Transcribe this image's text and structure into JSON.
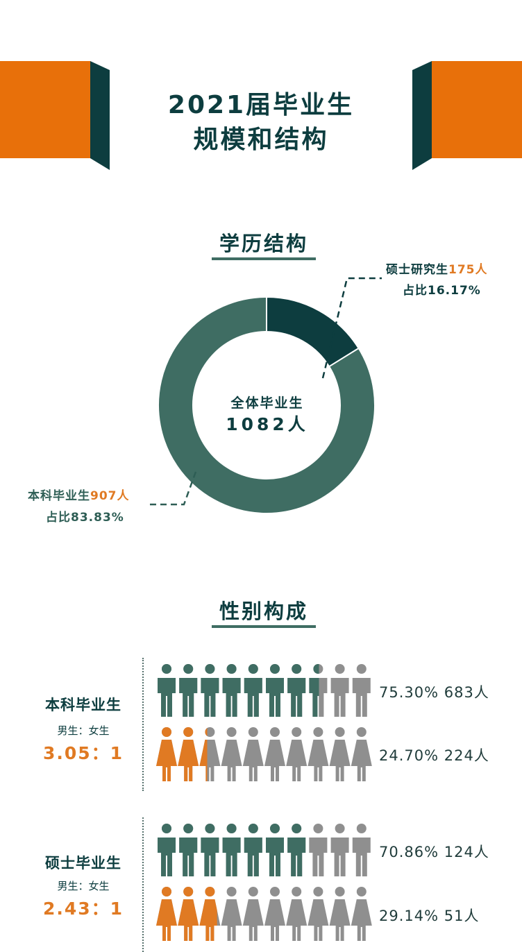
{
  "header": {
    "title_line1": "2021届毕业生",
    "title_line2": "规模和结构"
  },
  "colors": {
    "dark_teal": "#0d3d3f",
    "green": "#3f6d63",
    "orange": "#e8700a",
    "gray": "#8f8f8f",
    "female_orange": "#e07a23"
  },
  "education_section": {
    "title": "学历结构",
    "center_label": "全体毕业生",
    "center_value": "1082人",
    "master_label": "硕士研究生",
    "master_count": "175人",
    "master_share": "占比16.17%",
    "bachelor_label": "本科毕业生",
    "bachelor_count": "907人",
    "bachelor_share": "占比83.83%"
  },
  "gender_section": {
    "title": "性别构成",
    "groups": [
      {
        "name": "本科毕业生",
        "ratio_label": "男生：女生",
        "ratio": "3.05：1",
        "male_text": "75.30%  683人",
        "female_text": "24.70%  224人"
      },
      {
        "name": "硕士毕业生",
        "ratio_label": "男生：女生",
        "ratio": "2.43：1",
        "male_text": "70.86%  124人",
        "female_text": "29.14%  51人"
      }
    ]
  },
  "chart_data": [
    {
      "type": "pie",
      "title": "学历结构",
      "categories": [
        "硕士研究生",
        "本科毕业生"
      ],
      "values": [
        175,
        907
      ],
      "percentages": [
        16.17,
        83.83
      ],
      "total": 1082,
      "colors": [
        "#0d3d3f",
        "#3f6d63"
      ]
    },
    {
      "type": "bar",
      "title": "性别构成",
      "categories": [
        "本科毕业生",
        "硕士毕业生"
      ],
      "series": [
        {
          "name": "男生",
          "values": [
            75.3,
            70.86
          ],
          "counts": [
            683,
            124
          ],
          "color": "#3f6d63"
        },
        {
          "name": "女生",
          "values": [
            24.7,
            29.14
          ],
          "counts": [
            224,
            51
          ],
          "color": "#e07a23"
        }
      ]
    }
  ]
}
